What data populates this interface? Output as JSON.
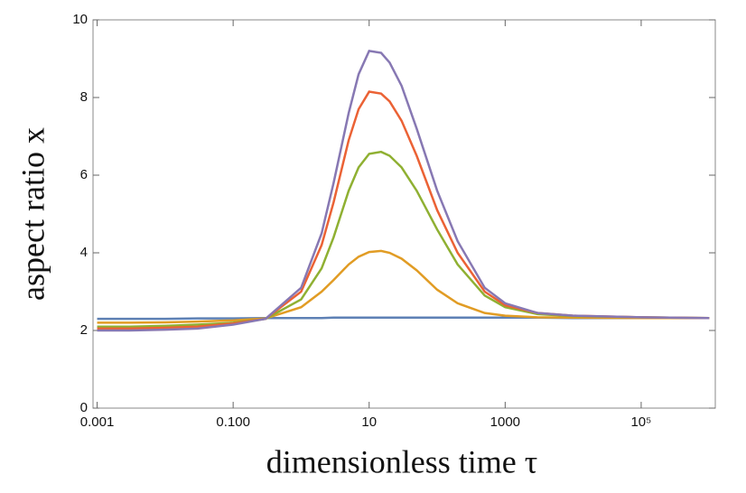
{
  "chart_data": {
    "type": "line",
    "x_label": "dimensionless time τ",
    "y_label": "aspect ratio x",
    "xscale": "log",
    "x": [
      0.001,
      0.003,
      0.01,
      0.03,
      0.1,
      0.3,
      1,
      2,
      3,
      5,
      7,
      10,
      15,
      20,
      30,
      50,
      100,
      200,
      500,
      1000,
      3000,
      10000,
      100000,
      1000000
    ],
    "series": [
      {
        "color": "#5e81b5",
        "values": [
          2.3,
          2.3,
          2.3,
          2.31,
          2.31,
          2.32,
          2.32,
          2.32,
          2.33,
          2.33,
          2.33,
          2.33,
          2.33,
          2.33,
          2.33,
          2.33,
          2.33,
          2.33,
          2.33,
          2.33,
          2.33,
          2.32,
          2.32,
          2.32
        ]
      },
      {
        "color": "#e19c24",
        "values": [
          2.2,
          2.2,
          2.21,
          2.23,
          2.26,
          2.31,
          2.6,
          3.0,
          3.3,
          3.7,
          3.9,
          4.02,
          4.05,
          4.0,
          3.85,
          3.55,
          3.05,
          2.7,
          2.45,
          2.38,
          2.34,
          2.33,
          2.32,
          2.32
        ]
      },
      {
        "color": "#8fb032",
        "values": [
          2.1,
          2.1,
          2.12,
          2.15,
          2.2,
          2.3,
          2.8,
          3.6,
          4.4,
          5.6,
          6.2,
          6.55,
          6.6,
          6.5,
          6.2,
          5.6,
          4.6,
          3.7,
          2.9,
          2.6,
          2.42,
          2.37,
          2.34,
          2.32
        ]
      },
      {
        "color": "#eb6235",
        "values": [
          2.05,
          2.05,
          2.07,
          2.1,
          2.18,
          2.3,
          3.0,
          4.2,
          5.3,
          6.9,
          7.7,
          8.15,
          8.1,
          7.9,
          7.4,
          6.5,
          5.1,
          4.0,
          3.0,
          2.65,
          2.45,
          2.38,
          2.34,
          2.32
        ]
      },
      {
        "color": "#8778b3",
        "values": [
          2.0,
          2.0,
          2.02,
          2.05,
          2.15,
          2.3,
          3.1,
          4.5,
          5.8,
          7.6,
          8.6,
          9.2,
          9.15,
          8.9,
          8.3,
          7.2,
          5.6,
          4.3,
          3.1,
          2.7,
          2.45,
          2.38,
          2.34,
          2.32
        ]
      }
    ],
    "xlim": [
      0.00087,
      1230000
    ],
    "ylim": [
      0,
      10
    ],
    "xticks": [
      0.001,
      {
        "value": 0.1,
        "label": "0.100"
      },
      10,
      1000,
      {
        "value": 100000,
        "label": "10⁵"
      }
    ],
    "yticks": [
      0,
      2,
      4,
      6,
      8,
      10
    ]
  }
}
